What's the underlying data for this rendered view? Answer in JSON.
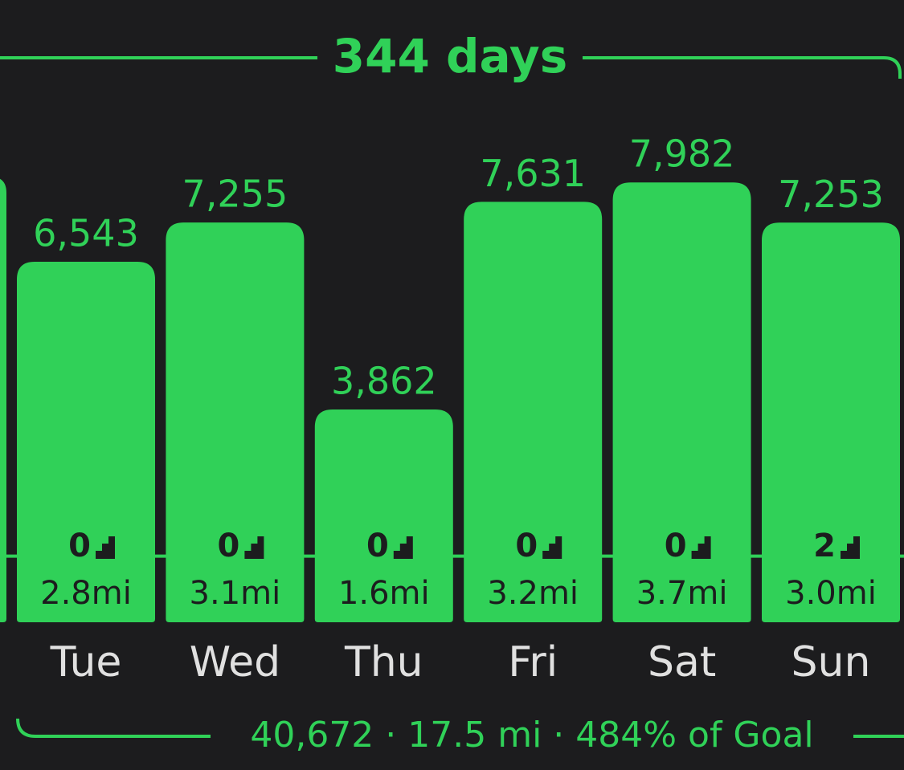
{
  "chart_data": {
    "type": "bar",
    "title": "344 days",
    "summary": "40,672 · 17.5 mi · 484% of Goal",
    "categories": [
      "Tue",
      "Wed",
      "Thu",
      "Fri",
      "Sat",
      "Sun"
    ],
    "values": [
      6543,
      7255,
      3862,
      7631,
      7982,
      7253
    ],
    "value_labels": [
      "6,543",
      "7,255",
      "3,862",
      "7,631",
      "7,982",
      "7,253"
    ],
    "floors": [
      0,
      0,
      0,
      0,
      0,
      2
    ],
    "distances": [
      "2.8mi",
      "3.1mi",
      "1.6mi",
      "3.2mi",
      "3.7mi",
      "3.0mi"
    ],
    "goal": 1200,
    "color": "#30d158",
    "ylim": [
      0,
      8000
    ]
  }
}
